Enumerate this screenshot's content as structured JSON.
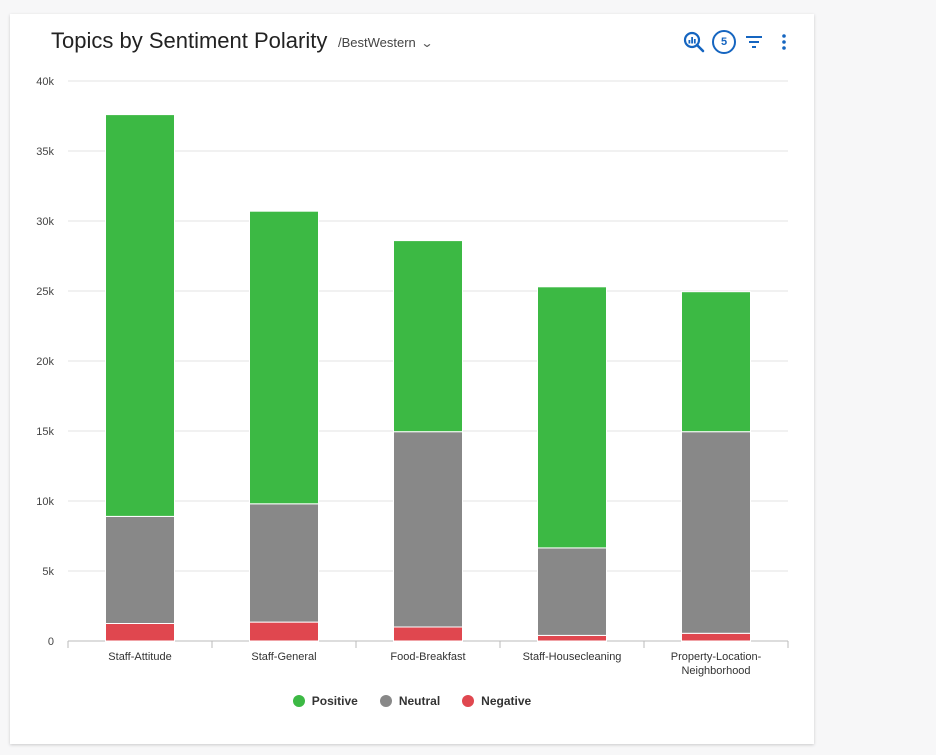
{
  "header": {
    "title": "Topics by Sentiment Polarity",
    "source": "/BestWestern",
    "badge_count": "5"
  },
  "icons": {
    "search": "search-chart-icon",
    "filter": "filter-icon",
    "menu": "more-vert-icon",
    "dropdown": "chevron-down-icon"
  },
  "colors": {
    "Positive": "#3cb944",
    "Neutral": "#888888",
    "Negative": "#e0474f",
    "accent": "#1565c0"
  },
  "chart_data": {
    "type": "bar",
    "stacked": true,
    "categories": [
      "Staff-Attitude",
      "Staff-General",
      "Food-Breakfast",
      "Staff-Housecleaning",
      "Property-Location-Neighborhood"
    ],
    "category_labels": [
      [
        "Staff-Attitude"
      ],
      [
        "Staff-General"
      ],
      [
        "Food-Breakfast"
      ],
      [
        "Staff-Housecleaning"
      ],
      [
        "Property-Location-",
        "Neighborhood"
      ]
    ],
    "series": [
      {
        "name": "Negative",
        "values": [
          1250,
          1350,
          1000,
          400,
          550
        ]
      },
      {
        "name": "Neutral",
        "values": [
          7650,
          8450,
          13950,
          6250,
          14400
        ]
      },
      {
        "name": "Positive",
        "values": [
          28700,
          20900,
          13650,
          18650,
          10000
        ]
      }
    ],
    "ylim": [
      0,
      40000
    ],
    "yticks": [
      0,
      5000,
      10000,
      15000,
      20000,
      25000,
      30000,
      35000,
      40000
    ],
    "ytick_labels": [
      "0",
      "5k",
      "10k",
      "15k",
      "20k",
      "25k",
      "30k",
      "35k",
      "40k"
    ],
    "grid": true,
    "legend": {
      "position": "bottom",
      "entries": [
        "Positive",
        "Neutral",
        "Negative"
      ]
    },
    "title": "Topics by Sentiment Polarity",
    "xlabel": "",
    "ylabel": ""
  }
}
